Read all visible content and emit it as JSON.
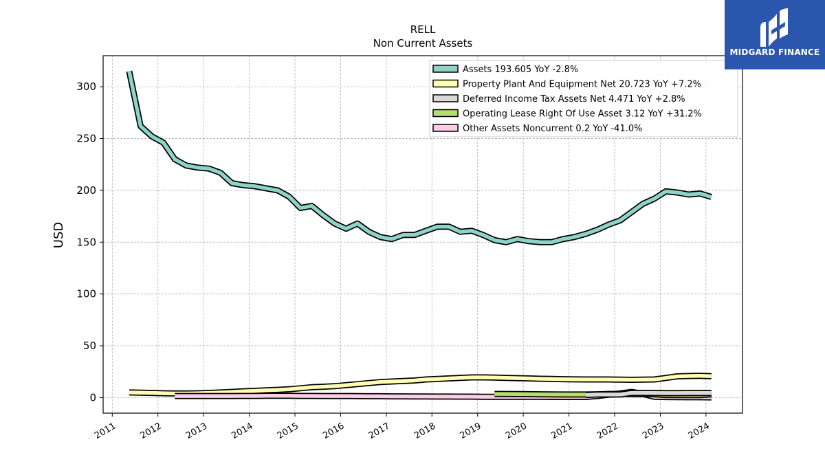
{
  "brand": {
    "name": "MIDGARD FINANCE",
    "color": "#2a57ad"
  },
  "chart_data": {
    "type": "area",
    "title": "RELL",
    "subtitle": "Non Current  Assets",
    "xlabel": "",
    "ylabel": "USD",
    "xlim": [
      2010.8,
      2024.8
    ],
    "ylim": [
      -15,
      330
    ],
    "x_ticks": [
      2011,
      2012,
      2013,
      2014,
      2015,
      2016,
      2017,
      2018,
      2019,
      2020,
      2021,
      2022,
      2023,
      2024
    ],
    "y_ticks": [
      0,
      50,
      100,
      150,
      200,
      250,
      300
    ],
    "grid": true,
    "legend_position": "top-right",
    "series": [
      {
        "name": "Assets  193.605 YoY -2.8%",
        "color": "#8dd3c7",
        "x": [
          2011.37,
          2011.62,
          2011.87,
          2012.12,
          2012.37,
          2012.62,
          2012.87,
          2013.12,
          2013.37,
          2013.62,
          2013.87,
          2014.12,
          2014.37,
          2014.62,
          2014.87,
          2015.12,
          2015.37,
          2015.62,
          2015.87,
          2016.12,
          2016.37,
          2016.62,
          2016.87,
          2017.12,
          2017.37,
          2017.62,
          2017.87,
          2018.12,
          2018.37,
          2018.62,
          2018.87,
          2019.12,
          2019.37,
          2019.62,
          2019.87,
          2020.12,
          2020.37,
          2020.62,
          2020.87,
          2021.12,
          2021.37,
          2021.62,
          2021.87,
          2022.12,
          2022.37,
          2022.62,
          2022.87,
          2023.12,
          2023.37,
          2023.62,
          2023.87,
          2024.12
        ],
        "values": [
          315,
          262,
          252,
          246,
          230,
          224,
          222,
          221,
          217,
          207,
          205,
          204,
          202,
          200,
          194,
          183,
          185,
          176,
          168,
          163,
          168,
          160,
          155,
          153,
          157,
          157,
          161,
          165,
          165,
          160,
          161,
          157,
          152,
          150,
          153,
          151,
          150,
          150,
          153,
          155,
          158,
          162,
          167,
          171,
          179,
          187,
          192,
          199,
          198,
          196,
          197,
          193.605
        ]
      },
      {
        "name": "Property Plant And Equipment Net  20.723 YoY +7.2%",
        "color": "#ffffb3",
        "x": [
          2011.37,
          2011.62,
          2011.87,
          2012.12,
          2012.37,
          2012.62,
          2012.87,
          2013.12,
          2013.37,
          2013.62,
          2013.87,
          2014.12,
          2014.37,
          2014.62,
          2014.87,
          2015.12,
          2015.37,
          2015.62,
          2015.87,
          2016.12,
          2016.37,
          2016.62,
          2016.87,
          2017.12,
          2017.37,
          2017.62,
          2017.87,
          2018.12,
          2018.37,
          2018.62,
          2018.87,
          2019.12,
          2019.37,
          2019.62,
          2019.87,
          2020.12,
          2020.37,
          2020.62,
          2020.87,
          2021.12,
          2021.37,
          2021.62,
          2021.87,
          2022.12,
          2022.37,
          2022.62,
          2022.87,
          2023.12,
          2023.37,
          2023.62,
          2023.87,
          2024.12
        ],
        "values": [
          5,
          4.8,
          4.5,
          4.2,
          4,
          4,
          4.2,
          4.5,
          5,
          5.5,
          6,
          6.5,
          7,
          7.5,
          8,
          9,
          10,
          10.5,
          11,
          12,
          13,
          14,
          15,
          15.5,
          16,
          16.5,
          17.5,
          18,
          18.5,
          19,
          19.5,
          19.5,
          19.3,
          19,
          18.8,
          18.5,
          18.2,
          18,
          17.8,
          17.6,
          17.5,
          17.5,
          17.5,
          17.3,
          17.2,
          17.3,
          17.5,
          19,
          20.5,
          20.8,
          21,
          20.723
        ]
      },
      {
        "name": "Deferred Income Tax Assets Net  4.471 YoY +2.8%",
        "color": "#d9d9d9",
        "x": [
          2021.37,
          2021.62,
          2021.87,
          2022.12,
          2022.37,
          2022.62,
          2022.87,
          2023.12,
          2023.37,
          2023.62,
          2023.87,
          2024.12
        ],
        "values": [
          2.5,
          3,
          3,
          3,
          4.5,
          4.5,
          4.4,
          4.3,
          4.3,
          4.4,
          4.35,
          4.471
        ]
      },
      {
        "name": "Operating Lease Right Of Use Asset  3.12 YoY +31.2%",
        "color": "#b3de69",
        "x": [
          2019.37,
          2019.62,
          2019.87,
          2020.12,
          2020.37,
          2020.62,
          2020.87,
          2021.12,
          2021.37,
          2021.62,
          2021.87,
          2022.12,
          2022.37,
          2022.62,
          2022.87,
          2023.12,
          2023.37,
          2023.62,
          2023.87,
          2024.12
        ],
        "values": [
          3.5,
          3.5,
          3.4,
          3.3,
          3.2,
          3.1,
          3,
          3,
          3,
          3.2,
          3.5,
          3.5,
          3.4,
          3.3,
          3.2,
          2.5,
          2.4,
          2.4,
          2.38,
          3.12
        ]
      },
      {
        "name": "Other Assets Noncurrent  0.2 YoY -41.0%",
        "color": "#fccde5",
        "x": [
          2012.37,
          2012.62,
          2012.87,
          2013.12,
          2013.37,
          2013.62,
          2013.87,
          2014.12,
          2014.37,
          2014.62,
          2014.87,
          2015.12,
          2015.37,
          2015.62,
          2015.87,
          2016.12,
          2016.37,
          2016.62,
          2016.87,
          2017.12,
          2017.37,
          2017.62,
          2017.87,
          2018.12,
          2018.37,
          2018.62,
          2018.87,
          2019.12,
          2019.37,
          2019.62,
          2019.87,
          2020.12,
          2020.37,
          2020.62,
          2020.87,
          2021.12,
          2021.37,
          2021.62,
          2021.87,
          2022.12,
          2022.37,
          2022.62,
          2022.87,
          2023.12,
          2023.37,
          2023.62,
          2023.87,
          2024.12
        ],
        "values": [
          1.5,
          1.5,
          1.5,
          1.5,
          1.5,
          1.5,
          1.6,
          1.6,
          1.7,
          1.7,
          1.7,
          1.6,
          1.6,
          1.5,
          1.5,
          1.5,
          1.4,
          1.3,
          1.3,
          1.2,
          1.2,
          1.1,
          1.1,
          1.0,
          1.0,
          0.9,
          0.9,
          0.8,
          0.8,
          0.8,
          0.7,
          0.7,
          0.7,
          0.6,
          0.6,
          0.6,
          0.6,
          1.5,
          2.8,
          4,
          5.5,
          3.5,
          0.8,
          0.5,
          0.4,
          0.3,
          0.3,
          0.2
        ]
      }
    ]
  }
}
